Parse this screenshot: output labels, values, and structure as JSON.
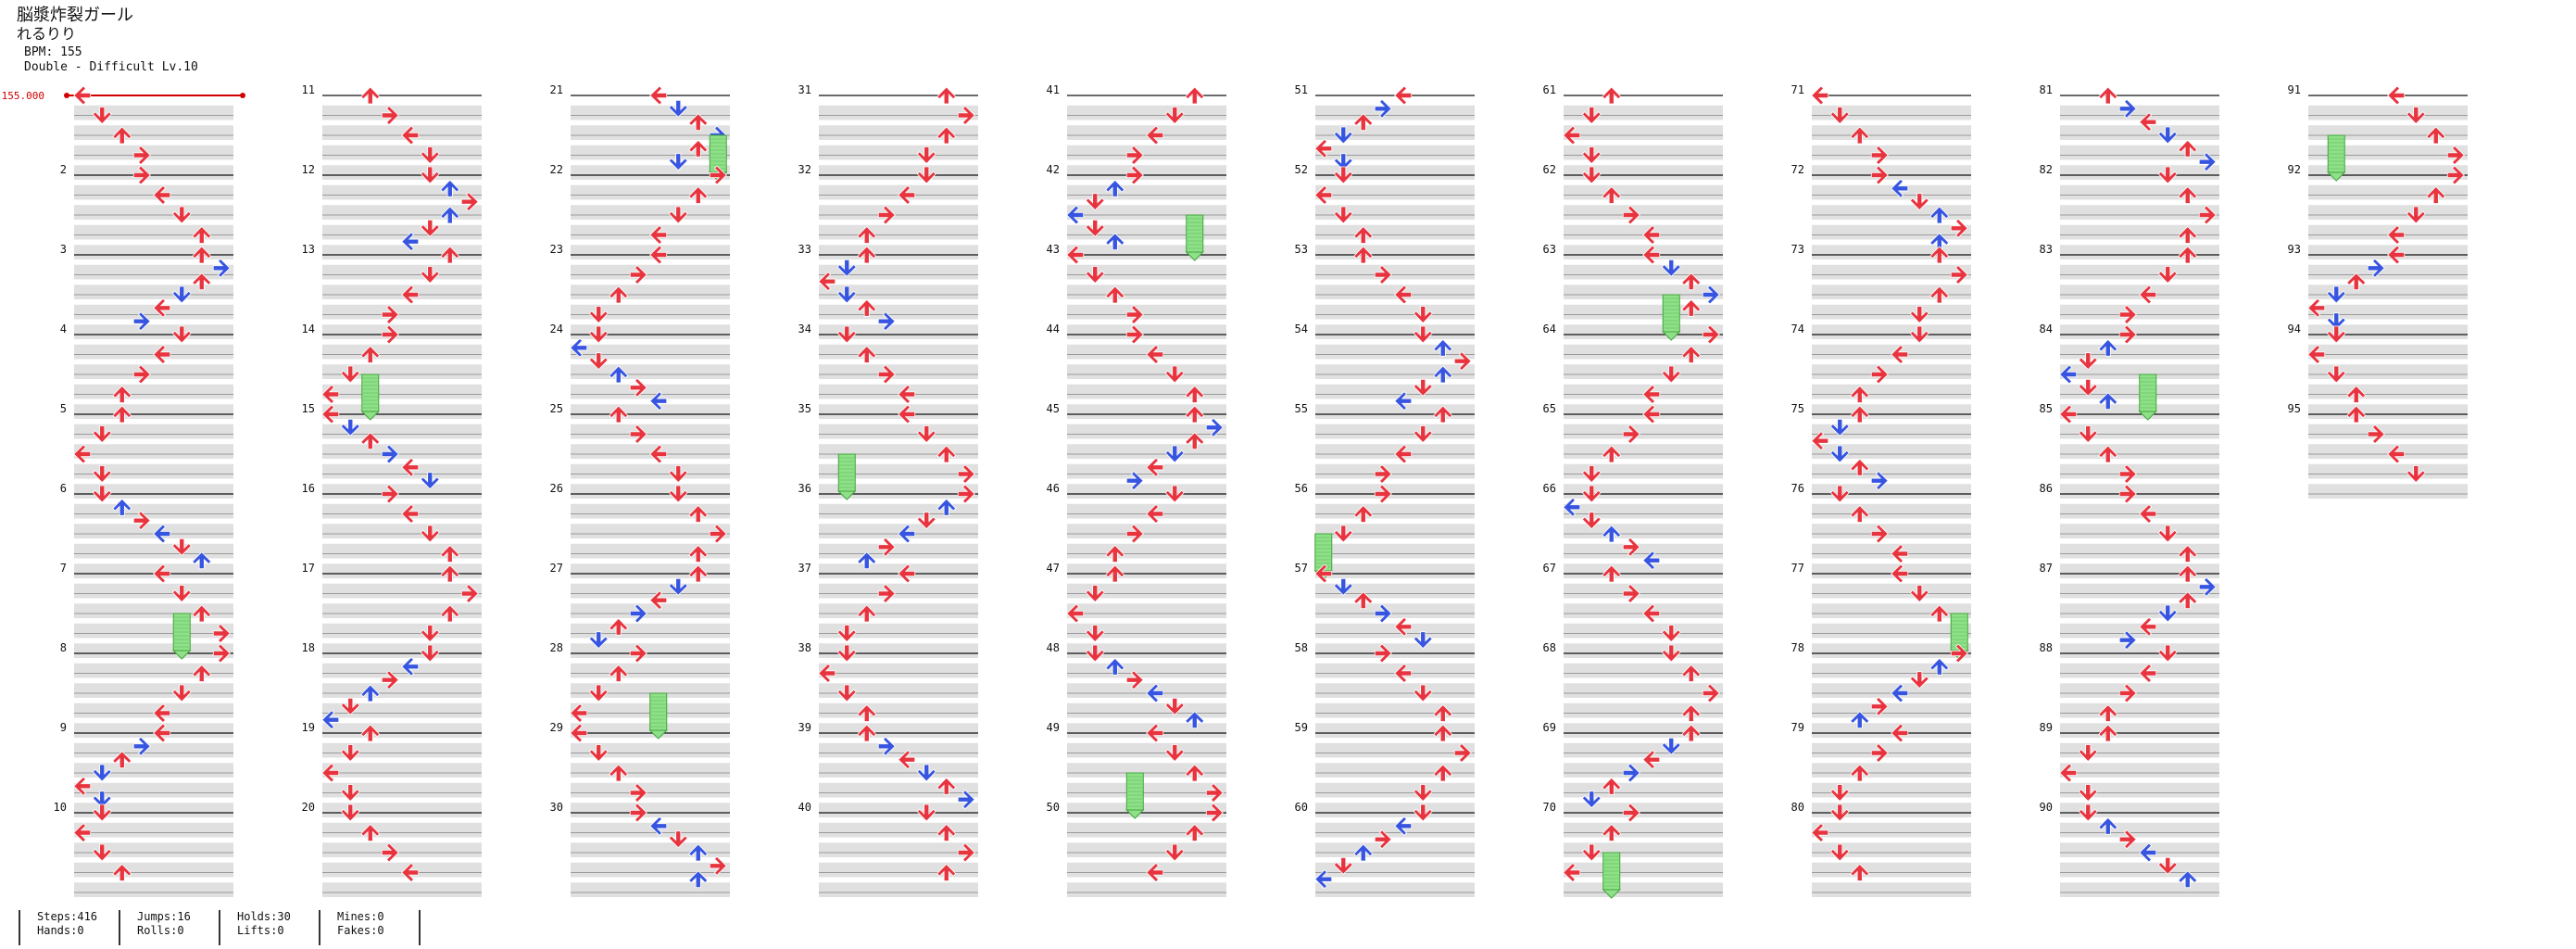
{
  "song": {
    "title": "脳漿炸裂ガール",
    "artist": "れるりり",
    "bpm_label": "BPM: 155",
    "difficulty_label": "Double - Difficult Lv.10"
  },
  "bpm_marker": "155.000",
  "measure_labels": [
    "2",
    "3",
    "4",
    "5",
    "6",
    "7",
    "8",
    "9",
    "10",
    "11",
    "12",
    "13",
    "14",
    "15",
    "16",
    "17",
    "18",
    "19",
    "20",
    "21",
    "22",
    "23",
    "24",
    "25",
    "26",
    "27",
    "28",
    "29",
    "30",
    "31",
    "32",
    "33",
    "34",
    "35",
    "36",
    "37",
    "38",
    "39",
    "40",
    "41",
    "42",
    "43",
    "44",
    "45",
    "46",
    "47",
    "48",
    "49",
    "50",
    "51",
    "52",
    "53",
    "54",
    "55",
    "56",
    "57",
    "58",
    "59",
    "60",
    "61",
    "62",
    "63",
    "64",
    "65",
    "66",
    "67",
    "68",
    "69",
    "70",
    "71",
    "72",
    "73",
    "74",
    "75",
    "76",
    "77",
    "78",
    "79",
    "80",
    "81",
    "82",
    "83",
    "84",
    "85",
    "86",
    "87",
    "88",
    "89",
    "90",
    "91",
    "92",
    "93",
    "94",
    "95"
  ],
  "colors": {
    "quarter": "#e8343f",
    "eighth": "#3755e0",
    "hold": "#8fe088",
    "hold_border": "#3fa63a",
    "bpm": "#d00000"
  },
  "footer": {
    "steps": "Steps:416",
    "hands": "Hands:0",
    "jumps": "Jumps:16",
    "rolls": "Rolls:0",
    "holds": "Holds:30",
    "lifts": "Lifts:0",
    "mines": "Mines:0",
    "fakes": "Fakes:0"
  }
}
